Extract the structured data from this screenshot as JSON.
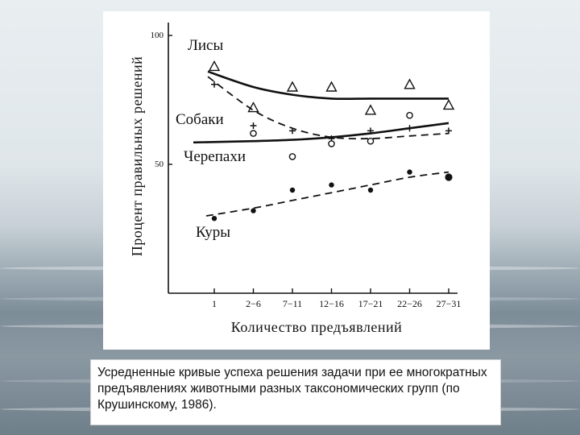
{
  "caption": "Усредненные кривые успеха решения задачи при ее многократных предъявлениях животными разных таксономических групп (по Крушинскому, 1986).",
  "chart_data": {
    "type": "scatter",
    "xlabel": "Количество предъявлений",
    "ylabel": "Процент правильных решений",
    "categories": [
      "1",
      "2−6",
      "7−11",
      "12−16",
      "17−21",
      "22−26",
      "27−31"
    ],
    "y_ticks": [
      "100",
      "50"
    ],
    "ylim": [
      0,
      100
    ],
    "grid": false,
    "series": [
      {
        "name": "Лисы",
        "marker": "triangle",
        "line": "solid",
        "points": [
          88,
          72,
          80,
          80,
          71,
          81,
          73
        ],
        "fit": [
          86,
          80,
          77,
          75.5,
          75.5,
          75.5,
          75.5
        ]
      },
      {
        "name": "Собаки",
        "marker": "plus",
        "line": "dashed",
        "points": [
          81,
          65,
          63,
          60,
          63,
          64,
          63
        ],
        "fit": [
          84,
          71,
          64,
          60.5,
          60,
          61,
          62
        ]
      },
      {
        "name": "Черепахи",
        "marker": "circle-open",
        "line": "solid",
        "points": [
          null,
          62,
          53,
          58,
          59,
          69,
          null
        ],
        "fit": [
          58.5,
          59,
          59.5,
          60.5,
          62,
          64,
          66
        ]
      },
      {
        "name": "Куры",
        "marker": "dot",
        "line": "dashed",
        "points": [
          29,
          32,
          40,
          42,
          40,
          47,
          45
        ],
        "fit": [
          30,
          33,
          36,
          39,
          42,
          45,
          47
        ]
      }
    ]
  }
}
